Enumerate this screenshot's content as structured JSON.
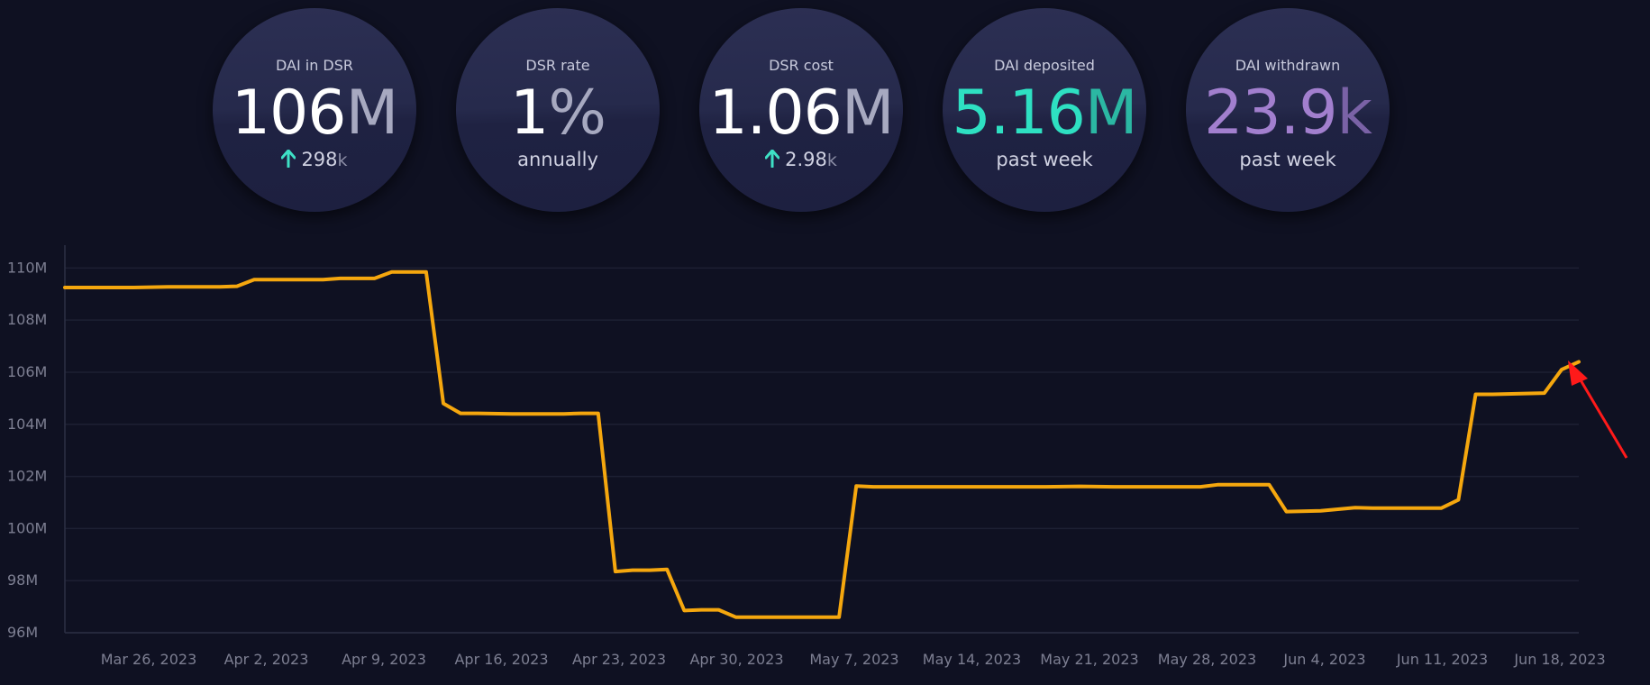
{
  "stats": [
    {
      "label": "DAI in DSR",
      "number": "106",
      "unit": "M",
      "change": "298",
      "change_unit": "k"
    },
    {
      "label": "DSR rate",
      "number": "1",
      "unit": "%",
      "note": "annually"
    },
    {
      "label": "DSR cost",
      "number": "1.06",
      "unit": "M",
      "change": "2.98",
      "change_unit": "k"
    },
    {
      "label": "DAI deposited",
      "number": "5.16",
      "unit": "M",
      "note": "past week"
    },
    {
      "label": "DAI withdrawn",
      "number": "23.9",
      "unit": "k",
      "note": "past week"
    }
  ],
  "colors": {
    "background": "#0f1122",
    "line": "#f5a70e",
    "arrow_up": "#3ee0c5",
    "deposited": "#2ee0c2",
    "withdrawn": "#a27fce",
    "annotation_arrow": "#ff1a1a"
  },
  "chart_data": {
    "type": "line",
    "title": "",
    "xlabel": "",
    "ylabel": "",
    "y_ticks": [
      "96M",
      "98M",
      "100M",
      "102M",
      "104M",
      "106M",
      "108M",
      "110M"
    ],
    "ylim": [
      96,
      110.6
    ],
    "x_ticks": [
      "Mar 26, 2023",
      "Apr 2, 2023",
      "Apr 9, 2023",
      "Apr 16, 2023",
      "Apr 23, 2023",
      "Apr 30, 2023",
      "May 7, 2023",
      "May 14, 2023",
      "May 21, 2023",
      "May 28, 2023",
      "Jun 4, 2023",
      "Jun 11, 2023",
      "Jun 18, 2023"
    ],
    "grid": true,
    "series": [
      {
        "points": [
          [
            "2023-03-22",
            109.25
          ],
          [
            "2023-03-26",
            109.25
          ],
          [
            "2023-03-28",
            109.28
          ],
          [
            "2023-03-31",
            109.28
          ],
          [
            "2023-04-01",
            109.3
          ],
          [
            "2023-04-02",
            109.55
          ],
          [
            "2023-04-04",
            109.55
          ],
          [
            "2023-04-06",
            109.55
          ],
          [
            "2023-04-07",
            109.6
          ],
          [
            "2023-04-08",
            109.6
          ],
          [
            "2023-04-09",
            109.6
          ],
          [
            "2023-04-10",
            109.85
          ],
          [
            "2023-04-11",
            109.85
          ],
          [
            "2023-04-12",
            109.85
          ],
          [
            "2023-04-13",
            104.8
          ],
          [
            "2023-04-14",
            104.42
          ],
          [
            "2023-04-15",
            104.42
          ],
          [
            "2023-04-17",
            104.4
          ],
          [
            "2023-04-20",
            104.4
          ],
          [
            "2023-04-21",
            104.42
          ],
          [
            "2023-04-22",
            104.42
          ],
          [
            "2023-04-23",
            98.35
          ],
          [
            "2023-04-24",
            98.4
          ],
          [
            "2023-04-25",
            98.4
          ],
          [
            "2023-04-26",
            98.43
          ],
          [
            "2023-04-27",
            96.85
          ],
          [
            "2023-04-28",
            96.88
          ],
          [
            "2023-04-29",
            96.88
          ],
          [
            "2023-04-30",
            96.6
          ],
          [
            "2023-05-02",
            96.6
          ],
          [
            "2023-05-06",
            96.6
          ],
          [
            "2023-05-07",
            101.63
          ],
          [
            "2023-05-08",
            101.6
          ],
          [
            "2023-05-12",
            101.6
          ],
          [
            "2023-05-14",
            101.6
          ],
          [
            "2023-05-16",
            101.6
          ],
          [
            "2023-05-18",
            101.6
          ],
          [
            "2023-05-20",
            101.62
          ],
          [
            "2023-05-22",
            101.6
          ],
          [
            "2023-05-27",
            101.6
          ],
          [
            "2023-05-28",
            101.68
          ],
          [
            "2023-05-31",
            101.68
          ],
          [
            "2023-06-01",
            100.65
          ],
          [
            "2023-06-03",
            100.68
          ],
          [
            "2023-06-05",
            100.8
          ],
          [
            "2023-06-06",
            100.78
          ],
          [
            "2023-06-10",
            100.78
          ],
          [
            "2023-06-11",
            101.1
          ],
          [
            "2023-06-12",
            105.15
          ],
          [
            "2023-06-13",
            105.15
          ],
          [
            "2023-06-16",
            105.2
          ],
          [
            "2023-06-17",
            106.1
          ],
          [
            "2023-06-18",
            106.4
          ]
        ]
      }
    ]
  }
}
